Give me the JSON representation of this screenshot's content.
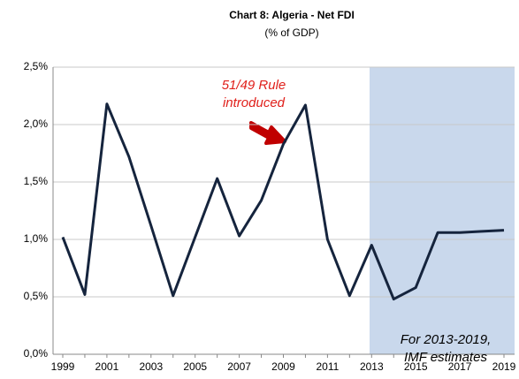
{
  "chart_data": {
    "type": "line",
    "title": "Chart 8: Algeria - Net FDI",
    "subtitle": "(% of GDP)",
    "categories": [
      "1999",
      null,
      "2001",
      null,
      "2003",
      null,
      "2005",
      null,
      "2007",
      null,
      "2009",
      null,
      "2011",
      null,
      "2013",
      null,
      "2015",
      null,
      "2017",
      null,
      "2019"
    ],
    "series": [
      {
        "name": "Net FDI",
        "color": "#15243d",
        "values": [
          1.02,
          0.52,
          2.18,
          1.72,
          1.12,
          0.51,
          1.02,
          1.53,
          1.03,
          1.34,
          1.83,
          2.17,
          1.0,
          0.51,
          0.95,
          0.48,
          0.58,
          1.06,
          1.06,
          1.07,
          1.08
        ]
      }
    ],
    "ylim": [
      0,
      2.5
    ],
    "yticks": [
      {
        "value": 0,
        "label": "0,0%"
      },
      {
        "value": 0.5,
        "label": "0,5%"
      },
      {
        "value": 1,
        "label": "1,0%"
      },
      {
        "value": 1.5,
        "label": "1,5%"
      },
      {
        "value": 2,
        "label": "2,0%"
      },
      {
        "value": 2.5,
        "label": "2,5%"
      }
    ],
    "grid": true,
    "annotations": [
      {
        "lines": [
          "51/49 Rule",
          "introduced"
        ],
        "color": "#e0201b"
      },
      {
        "lines": [
          "For 2013-2019,",
          "IMF estimates"
        ],
        "color": "#000000"
      }
    ]
  }
}
